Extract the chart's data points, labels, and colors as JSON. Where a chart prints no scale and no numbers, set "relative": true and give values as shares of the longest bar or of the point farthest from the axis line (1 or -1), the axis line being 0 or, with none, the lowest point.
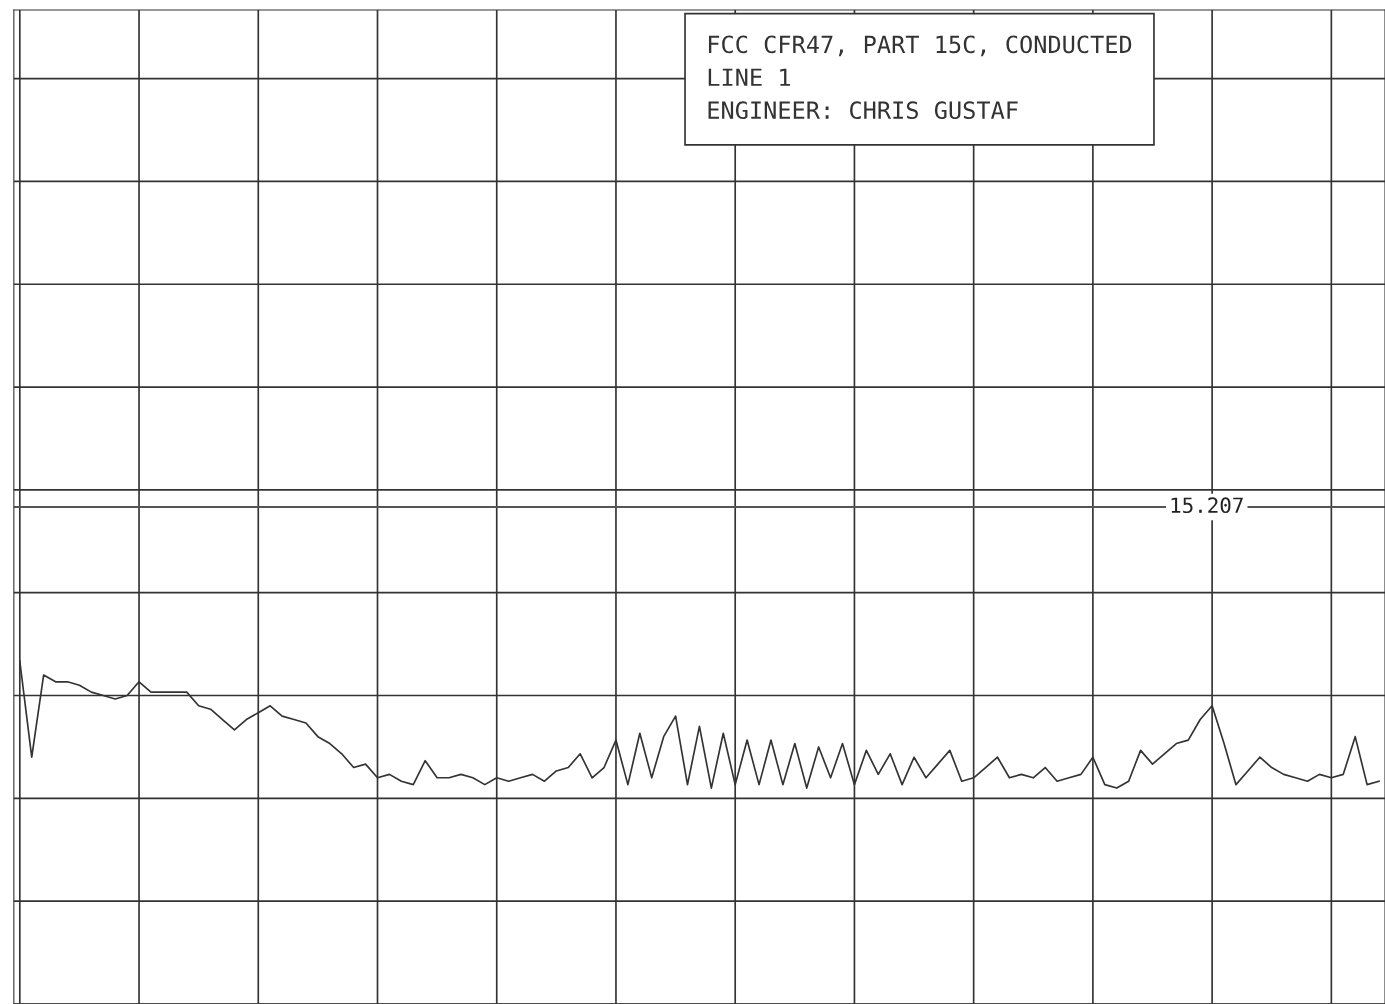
{
  "chart_data": {
    "type": "line",
    "relative": true,
    "title": "FCC CFR47, PART 15C, CONDUCTED",
    "annotations": [
      "LINE 1",
      "ENGINEER: CHRIS GUSTAF",
      {
        "text": "15.207",
        "y": 1.45
      }
    ],
    "categories": [
      null,
      null,
      null,
      null,
      null,
      null,
      null,
      null,
      null,
      null,
      null,
      null,
      null,
      null,
      null,
      null,
      null,
      null,
      null,
      null,
      null,
      null,
      null,
      null,
      null,
      null,
      null,
      null,
      null,
      null,
      null,
      null,
      null,
      null,
      null,
      null,
      null,
      null,
      null,
      null,
      null,
      null,
      null,
      null,
      null,
      null,
      null,
      null,
      null,
      null,
      null,
      null,
      null,
      null,
      null,
      null,
      null,
      null,
      null,
      null,
      null,
      null,
      null,
      null,
      null,
      null,
      null,
      null,
      null,
      null,
      null,
      null,
      null,
      null,
      null,
      null,
      null,
      null,
      null,
      null,
      null,
      null,
      null,
      null,
      null,
      null,
      null,
      null,
      null,
      null,
      null,
      null,
      null,
      null,
      null,
      null,
      null,
      null,
      null,
      null,
      null,
      null,
      null,
      null,
      null,
      null,
      null,
      null,
      null,
      null,
      null,
      null,
      null,
      null,
      null
    ],
    "series": [
      {
        "color": "#333333",
        "values": [
          1.0,
          0.72,
          0.96,
          0.94,
          0.94,
          0.93,
          0.91,
          0.9,
          0.89,
          0.9,
          0.94,
          0.91,
          0.91,
          0.91,
          0.91,
          0.87,
          0.86,
          0.83,
          0.8,
          0.83,
          0.85,
          0.87,
          0.84,
          0.83,
          0.82,
          0.78,
          0.76,
          0.73,
          0.69,
          0.7,
          0.66,
          0.67,
          0.65,
          0.64,
          0.71,
          0.66,
          0.66,
          0.67,
          0.66,
          0.64,
          0.66,
          0.65,
          0.66,
          0.67,
          0.65,
          0.68,
          0.69,
          0.73,
          0.66,
          0.69,
          0.77,
          0.64,
          0.79,
          0.66,
          0.78,
          0.84,
          0.64,
          0.81,
          0.63,
          0.79,
          0.64,
          0.77,
          0.64,
          0.77,
          0.64,
          0.76,
          0.63,
          0.75,
          0.66,
          0.76,
          0.64,
          0.74,
          0.67,
          0.73,
          0.64,
          0.72,
          0.66,
          0.7,
          0.74,
          0.65,
          0.66,
          0.69,
          0.72,
          0.66,
          0.67,
          0.66,
          0.69,
          0.65,
          0.66,
          0.67,
          0.72,
          0.64,
          0.63,
          0.65,
          0.74,
          0.7,
          0.73,
          0.76,
          0.77,
          0.83,
          0.87,
          0.76,
          0.64,
          0.68,
          0.72,
          0.69,
          0.67,
          0.66,
          0.65,
          0.67,
          0.66,
          0.67,
          0.78,
          0.64,
          0.65
        ]
      }
    ],
    "ref_lines": [
      {
        "axis": "y",
        "value": 1.45,
        "color": "#555555"
      }
    ],
    "grid": true,
    "marker": "none",
    "line_style": "solid"
  }
}
